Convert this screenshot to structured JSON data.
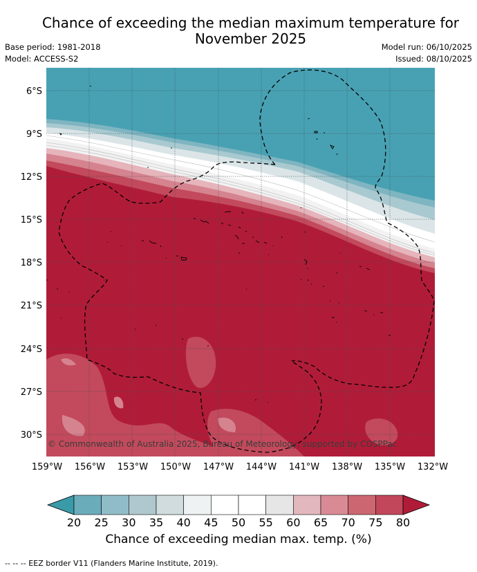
{
  "header": {
    "title_line1": "Chance of exceeding the median maximum temperature for",
    "title_line2": "November 2025",
    "base_period": "Base period: 1981-2018",
    "model": "Model: ACCESS-S2",
    "model_run": "Model run: 06/10/2025",
    "issued": "Issued: 08/10/2025"
  },
  "map": {
    "lat_labels": [
      "6°S",
      "9°S",
      "12°S",
      "15°S",
      "18°S",
      "21°S",
      "24°S",
      "27°S",
      "30°S"
    ],
    "lon_labels": [
      "159°W",
      "156°W",
      "153°W",
      "150°W",
      "147°W",
      "144°W",
      "141°W",
      "138°W",
      "135°W",
      "132°W"
    ],
    "copyright": "© Commonwealth of Australia 2025, Bureau of Meteorology, supported by COSPPac"
  },
  "colorbar": {
    "ticks": [
      "20",
      "25",
      "30",
      "35",
      "40",
      "45",
      "50",
      "55",
      "60",
      "65",
      "70",
      "75",
      "80"
    ],
    "colors": [
      "#3a9aa8",
      "#6aacba",
      "#8fbcc7",
      "#aec8ce",
      "#d0dcde",
      "#eef2f3",
      "#ffffff",
      "#ffffff",
      "#e6e6e6",
      "#e2b7bd",
      "#d98b95",
      "#cc6670",
      "#c2475a",
      "#b01c38"
    ],
    "label": "Chance of exceeding median max. temp. (%)"
  },
  "colors": {
    "high": "#b01c38",
    "low": "#48a1b3",
    "grid": "#3a4a4f"
  },
  "footer": {
    "text": "-- -- -- EEZ border V11 (Flanders Marine Institute, 2019)."
  }
}
